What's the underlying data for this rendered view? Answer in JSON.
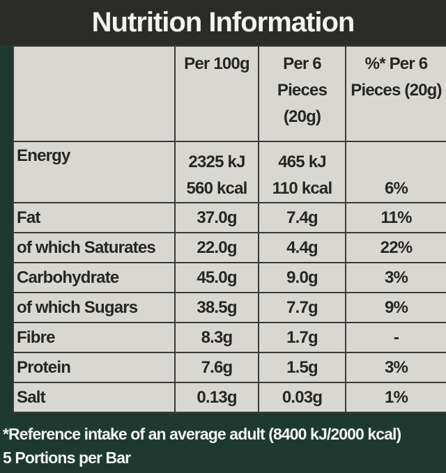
{
  "header": {
    "title": "Nutrition Information"
  },
  "table": {
    "columns": [
      "Per 100g",
      "Per 6 Pieces (20g)",
      "%* Per 6 Pieces (20g)"
    ],
    "rows": [
      {
        "label": "Energy",
        "values": [
          [
            "2325 kJ",
            "560 kcal"
          ],
          [
            "465 kJ",
            "110 kcal"
          ],
          [
            "6%"
          ]
        ]
      },
      {
        "label": "Fat",
        "values": [
          "37.0g",
          "7.4g",
          "11%"
        ]
      },
      {
        "label": "of which Saturates",
        "values": [
          "22.0g",
          "4.4g",
          "22%"
        ]
      },
      {
        "label": "Carbohydrate",
        "values": [
          "45.0g",
          "9.0g",
          "3%"
        ]
      },
      {
        "label": "of which Sugars",
        "values": [
          "38.5g",
          "7.7g",
          "9%"
        ]
      },
      {
        "label": "Fibre",
        "values": [
          "8.3g",
          "1.7g",
          "-"
        ]
      },
      {
        "label": "Protein",
        "values": [
          "7.6g",
          "1.5g",
          "3%"
        ]
      },
      {
        "label": "Salt",
        "values": [
          "0.13g",
          "0.03g",
          "1%"
        ]
      }
    ]
  },
  "footer": [
    "*Reference intake of an average adult (8400 kJ/2000 kcal)",
    "5 Portions per Bar"
  ]
}
